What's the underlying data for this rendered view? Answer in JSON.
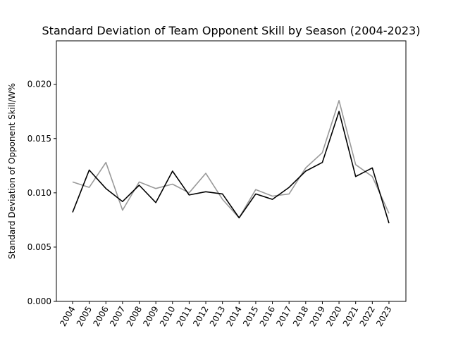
{
  "chart_data": {
    "type": "line",
    "title": "Standard Deviation of Team Opponent Skill by Season (2004-2023)",
    "xlabel": "",
    "ylabel": "Standard Deviation of Opponent Skill/W%",
    "x": [
      "2004",
      "2005",
      "2006",
      "2007",
      "2008",
      "2009",
      "2010",
      "2011",
      "2012",
      "2013",
      "2014",
      "2015",
      "2016",
      "2017",
      "2018",
      "2019",
      "2020",
      "2021",
      "2022",
      "2023"
    ],
    "ylim": [
      0,
      0.024
    ],
    "yticks": [
      "0.000",
      "0.005",
      "0.010",
      "0.015",
      "0.020"
    ],
    "grid": false,
    "series": [
      {
        "color": "#000000",
        "values": [
          0.0082,
          0.0121,
          0.0104,
          0.0092,
          0.0107,
          0.0091,
          0.012,
          0.0098,
          0.0101,
          0.0099,
          0.0077,
          0.0099,
          0.0094,
          0.0105,
          0.012,
          0.0128,
          0.0175,
          0.0115,
          0.0123,
          0.0072
        ]
      },
      {
        "color": "#999999",
        "values": [
          0.011,
          0.0105,
          0.0128,
          0.0084,
          0.011,
          0.0104,
          0.0108,
          0.01,
          0.0118,
          0.0094,
          0.0077,
          0.0103,
          0.0097,
          0.0099,
          0.0123,
          0.0137,
          0.0185,
          0.0126,
          0.0115,
          0.0081
        ]
      }
    ]
  }
}
